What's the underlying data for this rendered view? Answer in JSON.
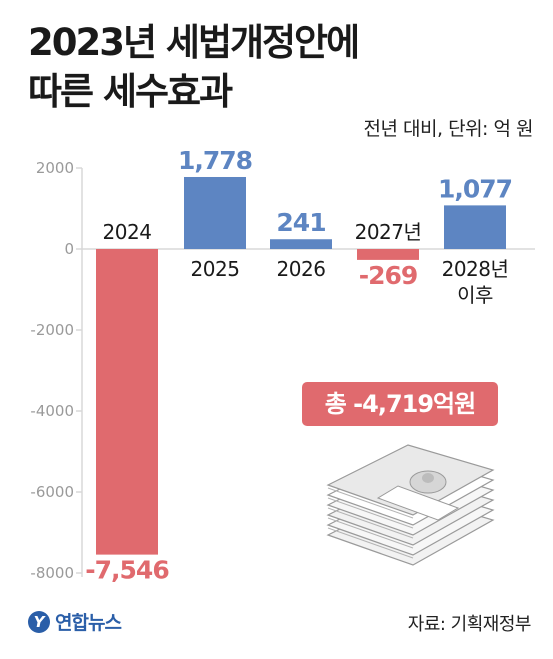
{
  "title_line1": "2023년 세법개정안에",
  "title_line2": "따른 세수효과",
  "subtitle": "전년 대비, 단위: 억 원",
  "total_label": "총 -4,719억원",
  "source": "자료: 기획재정부",
  "logo_text": "연합뉴스",
  "logo_mark": "Y",
  "colors": {
    "positive": "#5d85c2",
    "negative": "#e06a6e",
    "axis": "#d8d8d8",
    "tick": "#9a9a9a"
  },
  "chart_data": {
    "type": "bar",
    "categories": [
      "2024",
      "2025",
      "2026",
      "2027년",
      "2028년\n이후"
    ],
    "values": [
      -7546,
      1778,
      241,
      -269,
      1077
    ],
    "value_labels": [
      "-7,546",
      "1,778",
      "241",
      "-269",
      "1,077"
    ],
    "yticks": [
      2000,
      0,
      -2000,
      -4000,
      -6000,
      -8000
    ],
    "ylim": [
      -8000,
      2000
    ],
    "grid": false
  }
}
